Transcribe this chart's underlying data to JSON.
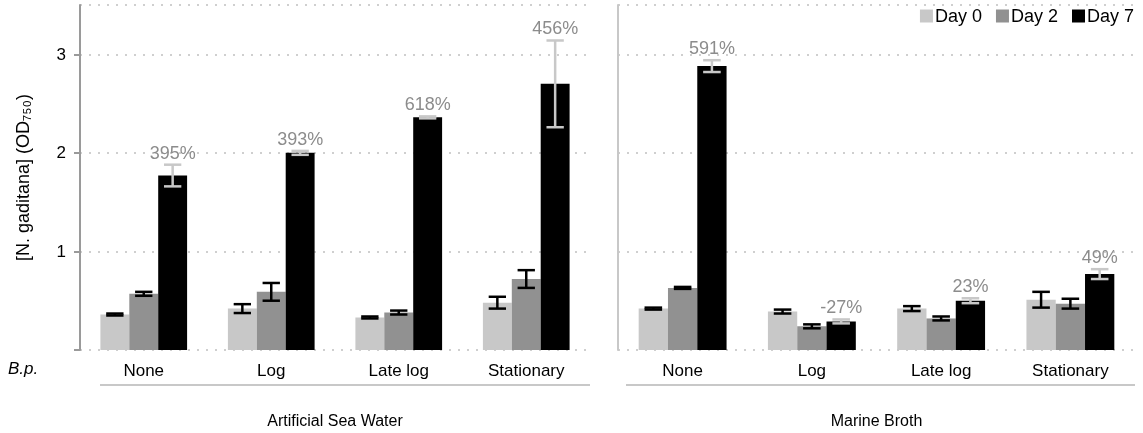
{
  "chart_data": [
    {
      "type": "bar",
      "ylabel": "[N. gaditana] (OD₇₅₀)",
      "xlabel": "Artificial Sea Water",
      "annotations": [
        "395%",
        "393%",
        "618%",
        "456%",
        "B.p."
      ],
      "categories": [
        "None",
        "Log",
        "Late log",
        "Stationary"
      ],
      "series": [
        {
          "color": "#c8c8c8",
          "values": [
            0.36,
            0.42,
            0.33,
            0.48
          ],
          "errors": [
            0.01,
            0.045,
            0.01,
            0.06
          ]
        },
        {
          "color": "#919191",
          "values": [
            0.57,
            0.59,
            0.38,
            0.72
          ],
          "errors": [
            0.02,
            0.09,
            0.02,
            0.09
          ]
        },
        {
          "color": "#000000",
          "values": [
            1.77,
            2.0,
            2.36,
            2.7
          ],
          "errors": [
            0.11,
            0.02,
            0.01,
            0.44
          ]
        }
      ],
      "ylim": [
        0,
        3.5
      ],
      "yticks": [
        {
          "value": 0,
          "label": null
        },
        1,
        2,
        3
      ],
      "grid": "y"
    },
    {
      "type": "bar",
      "xlabel": "Marine Broth",
      "legend": "top right",
      "tick_labels": "x",
      "annotations": [
        "591%",
        "-27%",
        "23%",
        "49%"
      ],
      "categories": [
        "None",
        "Log",
        "Late log",
        "Stationary"
      ],
      "series": [
        {
          "name": "Day 0",
          "color": "#c8c8c8",
          "values": [
            0.42,
            0.39,
            0.42,
            0.51
          ],
          "errors": [
            0.01,
            0.02,
            0.025,
            0.08
          ]
        },
        {
          "name": "Day 2",
          "color": "#919191",
          "values": [
            0.63,
            0.24,
            0.32,
            0.47
          ],
          "errors": [
            0.01,
            0.02,
            0.02,
            0.05
          ]
        },
        {
          "name": "Day 7",
          "color": "#000000",
          "values": [
            2.88,
            0.29,
            0.5,
            0.77
          ],
          "errors": [
            0.06,
            0.02,
            0.025,
            0.05
          ]
        }
      ],
      "ylim": [
        0,
        3.5
      ],
      "yticks": [
        {
          "value": 0,
          "label": null
        },
        1,
        2,
        3
      ],
      "grid": "y"
    }
  ]
}
